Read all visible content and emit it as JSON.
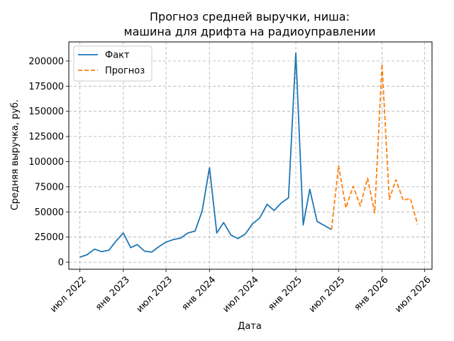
{
  "chart_data": {
    "type": "line",
    "title": [
      "Прогноз средней выручки, ниша:",
      "машина для дрифта на радиоуправлении"
    ],
    "xlabel": "Дата",
    "ylabel": "Средняя выручка, руб.",
    "xlim": [
      "2022-05-15",
      "2026-08-01"
    ],
    "ylim": [
      -7000,
      219000
    ],
    "yticks": [
      0,
      25000,
      50000,
      75000,
      100000,
      125000,
      150000,
      175000,
      200000
    ],
    "xticks": [
      {
        "date": "2022-07-01",
        "label": "июл 2022"
      },
      {
        "date": "2023-01-01",
        "label": "янв 2023"
      },
      {
        "date": "2023-07-01",
        "label": "июл 2023"
      },
      {
        "date": "2024-01-01",
        "label": "янв 2024"
      },
      {
        "date": "2024-07-01",
        "label": "июл 2024"
      },
      {
        "date": "2025-01-01",
        "label": "янв 2025"
      },
      {
        "date": "2025-07-01",
        "label": "июл 2025"
      },
      {
        "date": "2026-01-01",
        "label": "янв 2026"
      },
      {
        "date": "2026-07-01",
        "label": "июл 2026"
      }
    ],
    "grid": true,
    "legend_position": "top-left",
    "series": [
      {
        "name": "Факт",
        "color": "#1f77b4",
        "dash": "solid",
        "points": [
          [
            "2022-07-01",
            5000
          ],
          [
            "2022-08-01",
            7500
          ],
          [
            "2022-09-01",
            13000
          ],
          [
            "2022-10-01",
            10500
          ],
          [
            "2022-11-01",
            12000
          ],
          [
            "2022-12-01",
            21000
          ],
          [
            "2023-01-01",
            29000
          ],
          [
            "2023-02-01",
            14500
          ],
          [
            "2023-03-01",
            17500
          ],
          [
            "2023-04-01",
            11000
          ],
          [
            "2023-05-01",
            10000
          ],
          [
            "2023-06-01",
            15500
          ],
          [
            "2023-07-01",
            20000
          ],
          [
            "2023-08-01",
            22500
          ],
          [
            "2023-09-01",
            24000
          ],
          [
            "2023-10-01",
            29000
          ],
          [
            "2023-11-01",
            31000
          ],
          [
            "2023-12-01",
            51000
          ],
          [
            "2024-01-01",
            94000
          ],
          [
            "2024-02-01",
            29000
          ],
          [
            "2024-03-01",
            39500
          ],
          [
            "2024-04-01",
            27000
          ],
          [
            "2024-05-01",
            23500
          ],
          [
            "2024-06-01",
            28000
          ],
          [
            "2024-07-01",
            38000
          ],
          [
            "2024-08-01",
            44000
          ],
          [
            "2024-09-01",
            57500
          ],
          [
            "2024-10-01",
            51500
          ],
          [
            "2024-11-01",
            59000
          ],
          [
            "2024-12-01",
            64000
          ],
          [
            "2025-01-01",
            208000
          ],
          [
            "2025-02-01",
            37000
          ],
          [
            "2025-03-01",
            72500
          ],
          [
            "2025-04-01",
            40500
          ],
          [
            "2025-05-01",
            36500
          ],
          [
            "2025-06-01",
            32500
          ]
        ]
      },
      {
        "name": "Прогноз",
        "color": "#ff7f0e",
        "dash": "dashed",
        "points": [
          [
            "2025-06-01",
            32500
          ],
          [
            "2025-07-01",
            96000
          ],
          [
            "2025-08-01",
            54000
          ],
          [
            "2025-09-01",
            75500
          ],
          [
            "2025-10-01",
            56000
          ],
          [
            "2025-11-01",
            83500
          ],
          [
            "2025-12-01",
            49000
          ],
          [
            "2026-01-01",
            197000
          ],
          [
            "2026-02-01",
            62500
          ],
          [
            "2026-03-01",
            82000
          ],
          [
            "2026-04-01",
            61500
          ],
          [
            "2026-05-01",
            63500
          ],
          [
            "2026-06-01",
            37500
          ]
        ]
      }
    ]
  }
}
